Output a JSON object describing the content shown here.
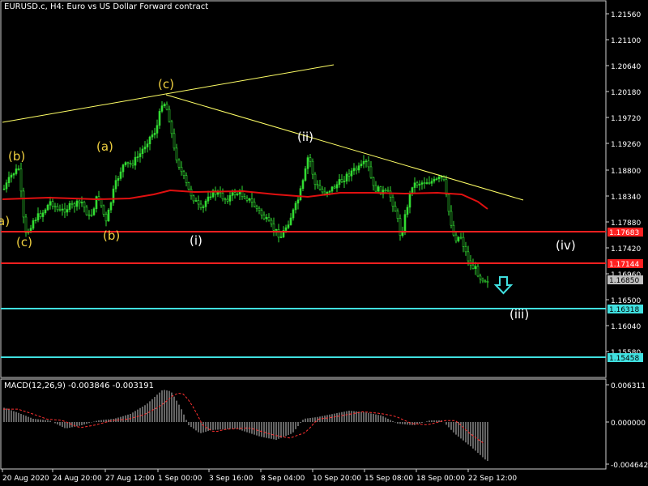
{
  "window": {
    "title": "EURUSD.c, H4:  Euro vs US Dollar Forward contract"
  },
  "price_axis": {
    "ticks": [
      "1.21560",
      "1.21100",
      "1.20640",
      "1.20180",
      "1.19720",
      "1.19260",
      "1.18800",
      "1.18340",
      "1.17880",
      "1.17420",
      "1.16960",
      "1.16500",
      "1.16040",
      "1.15580"
    ],
    "level_labels": [
      {
        "label": "1.17683",
        "color": "#ff2020"
      },
      {
        "label": "1.17144",
        "color": "#ff2020"
      },
      {
        "label": "1.16850",
        "color": "#c0c0c0"
      },
      {
        "label": "1.16318",
        "color": "#40e0e0"
      },
      {
        "label": "1.15458",
        "color": "#40e0e0"
      }
    ]
  },
  "time_axis": {
    "labels": [
      "20 Aug 2020",
      "24 Aug 20:00",
      "27 Aug 12:00",
      "1 Sep 00:00",
      "3 Sep 16:00",
      "8 Sep 04:00",
      "10 Sep 20:00",
      "15 Sep 08:00",
      "18 Sep 00:00",
      "22 Sep 12:00"
    ]
  },
  "macd": {
    "title": "MACD(12,26,9) -0.003846 -0.003191",
    "ticks": [
      "0.006311",
      "0.000000",
      "-0.004642"
    ]
  },
  "wave_labels": [
    {
      "text": "(b)",
      "color": "#f0d040"
    },
    {
      "text": "(c)",
      "color": "#f0d040"
    },
    {
      "text": "(a)",
      "color": "#f0d040"
    },
    {
      "text": "(b)",
      "color": "#f0d040"
    },
    {
      "text": "(c)",
      "color": "#f0d040"
    },
    {
      "text": "(i)",
      "color": "#ffffff"
    },
    {
      "text": "(ii)",
      "color": "#ffffff"
    },
    {
      "text": "(iii)",
      "color": "#ffffff"
    },
    {
      "text": "(iv)",
      "color": "#ffffff"
    },
    {
      "text": "a)",
      "color": "#f0d040"
    }
  ],
  "colors": {
    "bull_candle": "#33dd33",
    "moving_average": "#e01010",
    "trendline": "#ffff66",
    "resistance": "#ff2020",
    "support": "#40e0e0",
    "signal_line": "#ff3030",
    "histogram": "#c8c8c8"
  },
  "icons": {
    "down_arrow": "down-arrow-icon"
  }
}
